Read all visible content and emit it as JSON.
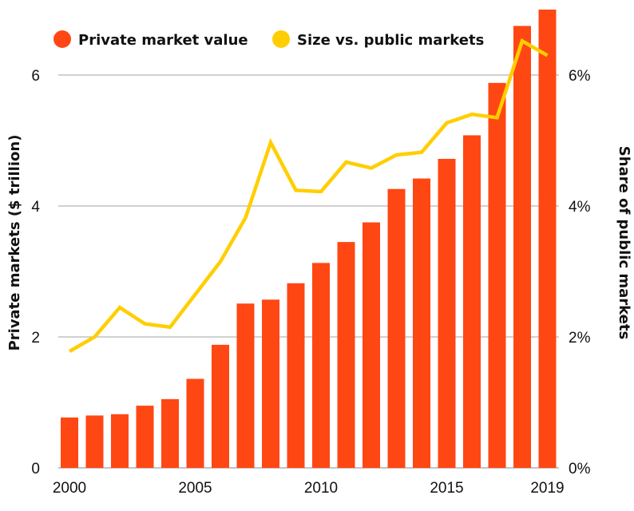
{
  "chart_data": {
    "type": "bar+line",
    "title": "",
    "x": [
      2000,
      2001,
      2002,
      2003,
      2004,
      2005,
      2006,
      2007,
      2008,
      2009,
      2010,
      2011,
      2012,
      2013,
      2014,
      2015,
      2016,
      2017,
      2018,
      2019
    ],
    "x_tick_labels": [
      "2000",
      "2005",
      "2010",
      "2015",
      "2019"
    ],
    "series": [
      {
        "name": "Private market value",
        "type": "bar",
        "axis": "left",
        "color": "#FF4713",
        "values": [
          0.77,
          0.8,
          0.82,
          0.95,
          1.05,
          1.36,
          1.88,
          2.51,
          2.57,
          2.82,
          3.13,
          3.45,
          3.75,
          4.26,
          4.42,
          4.72,
          5.08,
          5.88,
          6.75,
          7.0
        ]
      },
      {
        "name": "Size vs. public markets",
        "type": "line",
        "axis": "right",
        "color": "#FFCE00",
        "values": [
          1.78,
          2.0,
          2.45,
          2.2,
          2.15,
          2.65,
          3.15,
          3.82,
          4.97,
          4.24,
          4.22,
          4.67,
          4.58,
          4.78,
          4.82,
          5.27,
          5.4,
          5.35,
          6.52,
          6.3
        ]
      }
    ],
    "y_left": {
      "label": "Private markets ($ trillion)",
      "ticks": [
        "0",
        "2",
        "4",
        "6"
      ],
      "range": [
        0,
        7
      ]
    },
    "y_right": {
      "label": "Share of public markets",
      "ticks": [
        "0%",
        "2%",
        "4%",
        "6%"
      ],
      "range": [
        0,
        7
      ]
    },
    "grid": "horizontal",
    "legend_position": "top-left"
  }
}
